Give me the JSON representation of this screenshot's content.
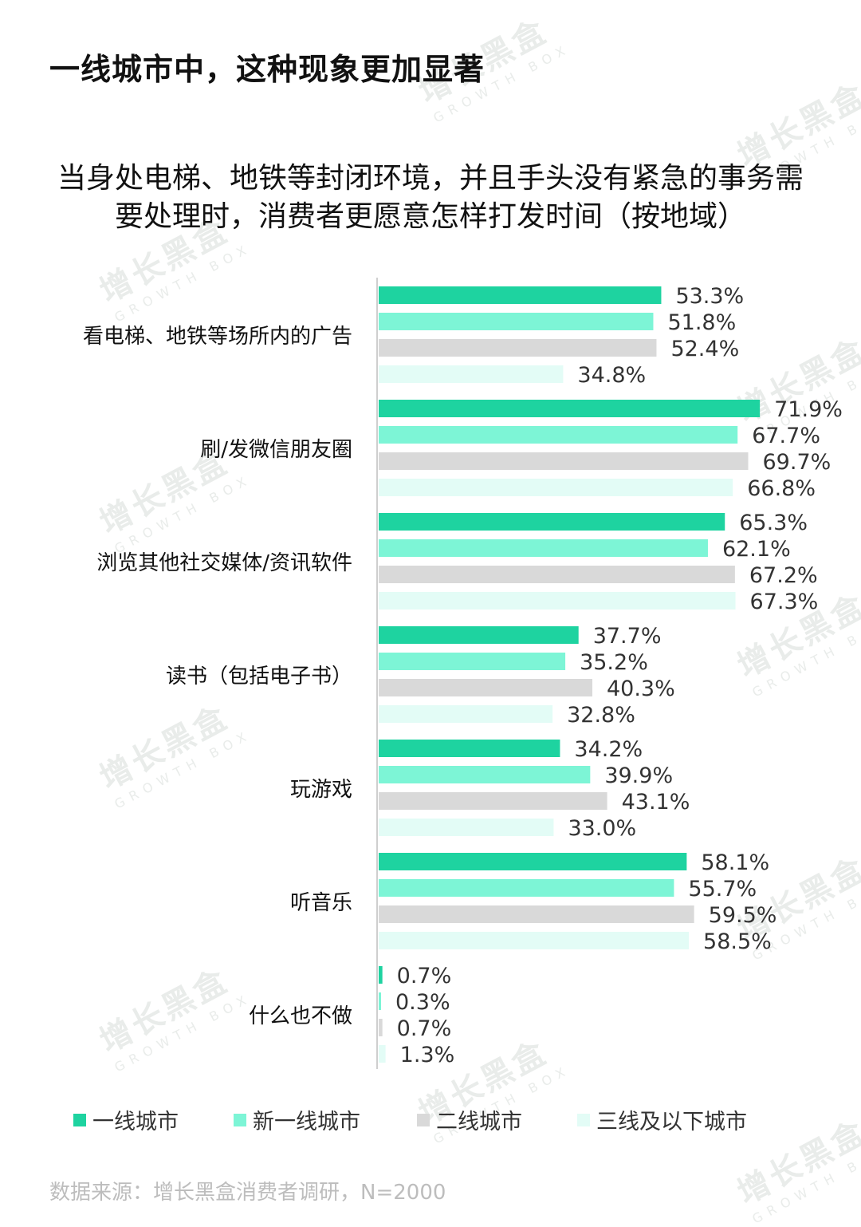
{
  "headline": "一线城市中，这种现象更加显著",
  "source": "数据来源：增长黑盒消费者调研，N=2000",
  "watermark": {
    "text": "增长黑盒",
    "sub": "GROWTH BOX"
  },
  "chart_data": {
    "type": "bar",
    "orientation": "horizontal",
    "title": "当身处电梯、地铁等封闭环境，并且手头没有紧急的事务需要处理时，消费者更愿意怎样打发时间（按地域）",
    "title_lines": [
      "当身处电梯、地铁等封闭环境，并且手头没有紧急的事务需",
      "要处理时，消费者更愿意怎样打发时间（按地域）"
    ],
    "categories": [
      "看电梯、地铁等场所内的广告",
      "刷/发微信朋友圈",
      "浏览其他社交媒体/资讯软件",
      "读书（包括电子书）",
      "玩游戏",
      "听音乐",
      "什么也不做"
    ],
    "series": [
      {
        "name": "一线城市",
        "color": "#1ed3a0",
        "values": [
          53.3,
          71.9,
          65.3,
          37.7,
          34.2,
          58.1,
          0.7
        ],
        "labels": [
          "53.3%",
          "71.9%",
          "65.3%",
          "37.7%",
          "34.2%",
          "58.1%",
          "0.7%"
        ]
      },
      {
        "name": "新一线城市",
        "color": "#7df5d6",
        "values": [
          51.8,
          67.7,
          62.1,
          35.2,
          39.9,
          55.7,
          0.3
        ],
        "labels": [
          "51.8%",
          "67.7%",
          "62.1%",
          "35.2%",
          "39.9%",
          "55.7%",
          "0.3%"
        ]
      },
      {
        "name": "二线城市",
        "color": "#d9d9d9",
        "values": [
          52.4,
          69.7,
          67.2,
          40.3,
          43.1,
          59.5,
          0.7
        ],
        "labels": [
          "52.4%",
          "69.7%",
          "67.2%",
          "40.3%",
          "43.1%",
          "59.5%",
          "0.7%"
        ]
      },
      {
        "name": "三线及以下城市",
        "color": "#e3fcf6",
        "values": [
          34.8,
          66.8,
          67.3,
          32.8,
          33.0,
          58.5,
          1.3
        ],
        "labels": [
          "34.8%",
          "66.8%",
          "67.3%",
          "32.8%",
          "33.0%",
          "58.5%",
          "1.3%"
        ]
      }
    ],
    "xlim": [
      0,
      100
    ],
    "legend_position": "bottom",
    "grid": false
  }
}
